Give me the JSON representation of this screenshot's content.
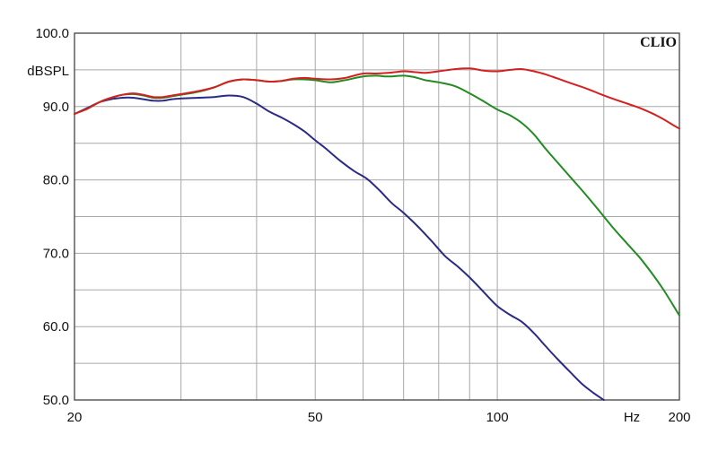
{
  "chart_data": {
    "type": "line",
    "brand": "CLIO",
    "ylabel": "dBSPL",
    "xlabel": "Hz",
    "xscale": "log",
    "xlim": [
      20,
      200
    ],
    "ylim": [
      50,
      100
    ],
    "grid": true,
    "x_ticks": [
      {
        "value": 20,
        "label": "20"
      },
      {
        "value": 50,
        "label": "50"
      },
      {
        "value": 100,
        "label": "100"
      },
      {
        "value": 200,
        "label": "200"
      }
    ],
    "y_ticks": [
      {
        "value": 100,
        "label": "100.0"
      },
      {
        "value": 90,
        "label": "90.0"
      },
      {
        "value": 80,
        "label": "80.0"
      },
      {
        "value": 70,
        "label": "70.0"
      },
      {
        "value": 60,
        "label": "60.0"
      },
      {
        "value": 50,
        "label": "50.0"
      }
    ],
    "series": [
      {
        "color": "#2b2b86",
        "x": [
          20,
          21,
          22,
          23,
          24,
          25,
          26,
          27,
          28,
          29,
          30,
          32,
          34,
          36,
          38,
          40,
          42,
          44,
          46,
          48,
          50,
          52,
          55,
          58,
          61,
          64,
          67,
          70,
          74,
          78,
          82,
          86,
          90,
          95,
          100,
          105,
          110,
          115,
          120,
          126,
          132,
          138,
          144,
          150
        ],
        "y": [
          89.0,
          89.8,
          90.6,
          91.0,
          91.2,
          91.2,
          91.0,
          90.8,
          90.8,
          91.0,
          91.1,
          91.2,
          91.3,
          91.5,
          91.3,
          90.4,
          89.3,
          88.5,
          87.6,
          86.6,
          85.4,
          84.3,
          82.6,
          81.2,
          80.1,
          78.5,
          76.8,
          75.5,
          73.6,
          71.6,
          69.6,
          68.2,
          66.7,
          64.7,
          62.8,
          61.6,
          60.6,
          59.1,
          57.4,
          55.5,
          53.8,
          52.2,
          51.0,
          50.0
        ]
      },
      {
        "color": "#228b22",
        "x": [
          20,
          21,
          22,
          23,
          24,
          25,
          26,
          27,
          28,
          29,
          30,
          32,
          34,
          36,
          38,
          40,
          42,
          44,
          46,
          48,
          50,
          53,
          56,
          60,
          63,
          66,
          70,
          73,
          76,
          80,
          85,
          90,
          95,
          100,
          105,
          110,
          115,
          120,
          126,
          132,
          140,
          148,
          156,
          164,
          172,
          180,
          188,
          196,
          200
        ],
        "y": [
          89.0,
          89.7,
          90.6,
          91.2,
          91.6,
          91.7,
          91.5,
          91.2,
          91.2,
          91.4,
          91.6,
          92.0,
          92.6,
          93.4,
          93.7,
          93.6,
          93.4,
          93.5,
          93.7,
          93.7,
          93.6,
          93.3,
          93.6,
          94.1,
          94.2,
          94.1,
          94.2,
          94.0,
          93.6,
          93.3,
          92.8,
          91.8,
          90.7,
          89.6,
          88.8,
          87.7,
          86.2,
          84.3,
          82.3,
          80.4,
          78.0,
          75.6,
          73.3,
          71.3,
          69.4,
          67.3,
          65.1,
          62.7,
          61.5
        ]
      },
      {
        "color": "#d62020",
        "x": [
          20,
          21,
          22,
          23,
          24,
          25,
          26,
          27,
          28,
          29,
          30,
          32,
          34,
          36,
          38,
          40,
          42,
          44,
          46,
          48,
          50,
          53,
          56,
          60,
          63,
          66,
          70,
          73,
          76,
          80,
          85,
          90,
          95,
          100,
          105,
          110,
          115,
          120,
          126,
          132,
          140,
          148,
          156,
          164,
          172,
          180,
          188,
          196,
          200
        ],
        "y": [
          89.0,
          89.7,
          90.6,
          91.2,
          91.6,
          91.8,
          91.6,
          91.3,
          91.3,
          91.5,
          91.7,
          92.1,
          92.6,
          93.4,
          93.7,
          93.6,
          93.4,
          93.5,
          93.8,
          93.9,
          93.8,
          93.7,
          93.9,
          94.5,
          94.5,
          94.6,
          94.8,
          94.7,
          94.6,
          94.8,
          95.1,
          95.2,
          94.9,
          94.8,
          95.0,
          95.1,
          94.8,
          94.4,
          93.8,
          93.2,
          92.5,
          91.7,
          91.0,
          90.4,
          89.8,
          89.1,
          88.3,
          87.4,
          87.0
        ]
      }
    ]
  }
}
